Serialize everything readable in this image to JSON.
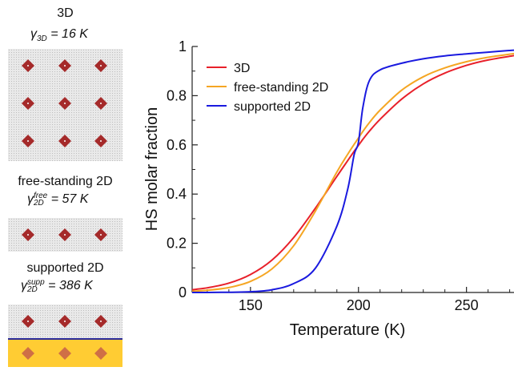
{
  "panels": {
    "p3d": {
      "title": "3D",
      "gamma_symbol": "γ",
      "gamma_sub": "3D",
      "gamma_sup": "",
      "gamma_value": "= 16 K"
    },
    "pfree": {
      "title": "free-standing 2D",
      "gamma_symbol": "γ",
      "gamma_sub": "2D",
      "gamma_sup": "free",
      "gamma_value": "= 57 K"
    },
    "psupp": {
      "title": "supported 2D",
      "gamma_symbol": "γ",
      "gamma_sub": "2D",
      "gamma_sup": "supp",
      "gamma_value": "= 386 K"
    },
    "colors": {
      "lattice_bg": "#e9e9e9",
      "molecule": "#a52a2a",
      "substrate": "#ffcc33",
      "interface_line": "#2a2a9a"
    }
  },
  "chart_data": {
    "type": "line",
    "title": "",
    "xlabel": "Temperature (K)",
    "ylabel": "HS molar fraction",
    "xlim": [
      123,
      272
    ],
    "ylim": [
      0,
      1
    ],
    "xticks": [
      150,
      200,
      250
    ],
    "yticks": [
      0,
      0.2,
      0.4,
      0.6,
      0.8,
      1
    ],
    "ytick_labels": [
      "0",
      "0.2",
      "0.4",
      "0.6",
      "0.8",
      "1"
    ],
    "legend_position": "top-left",
    "grid": false,
    "x": [
      123,
      130,
      140,
      150,
      160,
      170,
      180,
      190,
      195,
      198,
      200,
      202,
      205,
      210,
      220,
      230,
      240,
      250,
      260,
      272
    ],
    "series": [
      {
        "name": "3D",
        "color": "#e8202a",
        "values": [
          0.011,
          0.019,
          0.038,
          0.073,
          0.132,
          0.223,
          0.342,
          0.472,
          0.536,
          0.574,
          0.598,
          0.622,
          0.655,
          0.704,
          0.786,
          0.848,
          0.892,
          0.923,
          0.945,
          0.963
        ]
      },
      {
        "name": "free-standing 2D",
        "color": "#f5a623",
        "values": [
          0.005,
          0.009,
          0.02,
          0.045,
          0.096,
          0.19,
          0.33,
          0.49,
          0.562,
          0.602,
          0.628,
          0.654,
          0.69,
          0.741,
          0.822,
          0.877,
          0.913,
          0.938,
          0.956,
          0.971
        ]
      },
      {
        "name": "supported 2D",
        "color": "#1a1adf",
        "values": [
          0.0,
          0.0,
          0.001,
          0.003,
          0.011,
          0.036,
          0.098,
          0.27,
          0.42,
          0.56,
          0.61,
          0.75,
          0.86,
          0.905,
          0.932,
          0.95,
          0.962,
          0.97,
          0.977,
          0.985
        ]
      }
    ]
  }
}
